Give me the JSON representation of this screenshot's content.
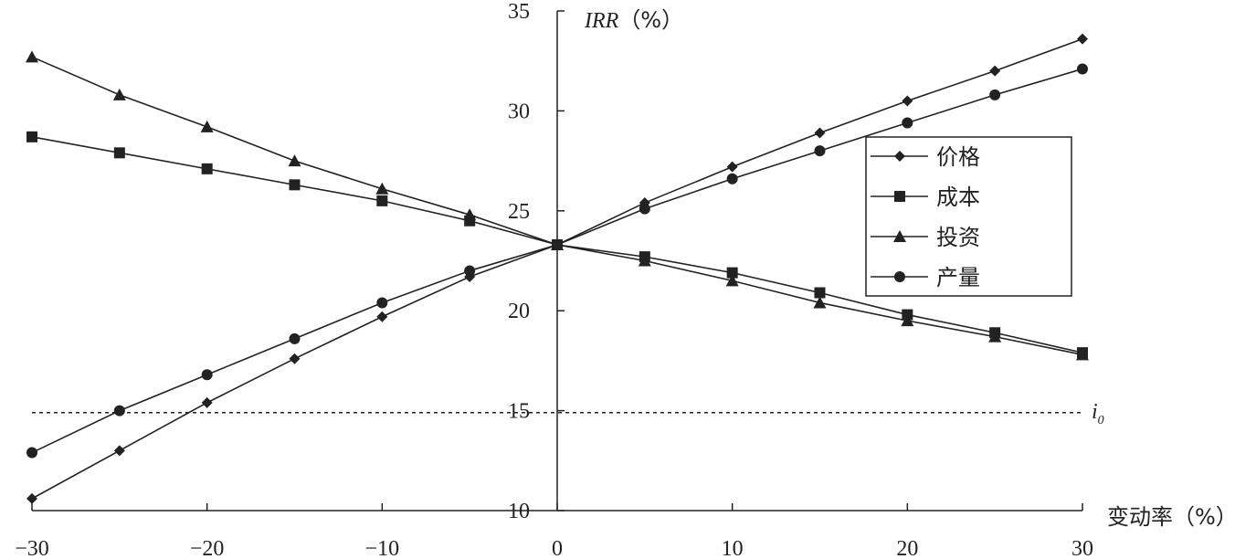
{
  "chart_data": {
    "type": "line",
    "x": [
      -30,
      -25,
      -20,
      -15,
      -10,
      -5,
      0,
      5,
      10,
      15,
      20,
      25,
      30
    ],
    "series": [
      {
        "name": "价格",
        "marker": "diamond",
        "values": [
          10.6,
          13.0,
          15.4,
          17.6,
          19.7,
          21.7,
          23.3,
          25.4,
          27.2,
          28.9,
          30.5,
          32.0,
          33.6
        ]
      },
      {
        "name": "成本",
        "marker": "square",
        "values": [
          28.7,
          27.9,
          27.1,
          26.3,
          25.5,
          24.5,
          23.3,
          22.7,
          21.9,
          20.9,
          19.8,
          18.9,
          17.9
        ]
      },
      {
        "name": "投资",
        "marker": "triangle",
        "values": [
          32.7,
          30.8,
          29.2,
          27.5,
          26.1,
          24.8,
          23.3,
          22.5,
          21.5,
          20.4,
          19.5,
          18.7,
          17.8
        ]
      },
      {
        "name": "产量",
        "marker": "circle",
        "values": [
          12.9,
          15.0,
          16.8,
          18.6,
          20.4,
          22.0,
          23.3,
          25.1,
          26.6,
          28.0,
          29.4,
          30.8,
          32.1
        ]
      }
    ],
    "reference_line": {
      "label": "i",
      "label_subscript": "0",
      "y": 14.9,
      "style": "dashed"
    },
    "xlabel": "变动率（%）",
    "ylabel_italic": "IRR",
    "ylabel_rest": "（%）",
    "x_ticks": [
      "−30",
      "−20",
      "−10",
      "0",
      "10",
      "20",
      "30"
    ],
    "x_tick_values": [
      -30,
      -20,
      -10,
      0,
      10,
      20,
      30
    ],
    "y_ticks": [
      "10",
      "15",
      "20",
      "25",
      "30",
      "35"
    ],
    "y_tick_values": [
      10,
      15,
      20,
      25,
      30,
      35
    ],
    "xlim": [
      -30,
      30
    ],
    "ylim": [
      10,
      35
    ],
    "grid": false,
    "legend_position": "top-right",
    "color": "#222222"
  }
}
